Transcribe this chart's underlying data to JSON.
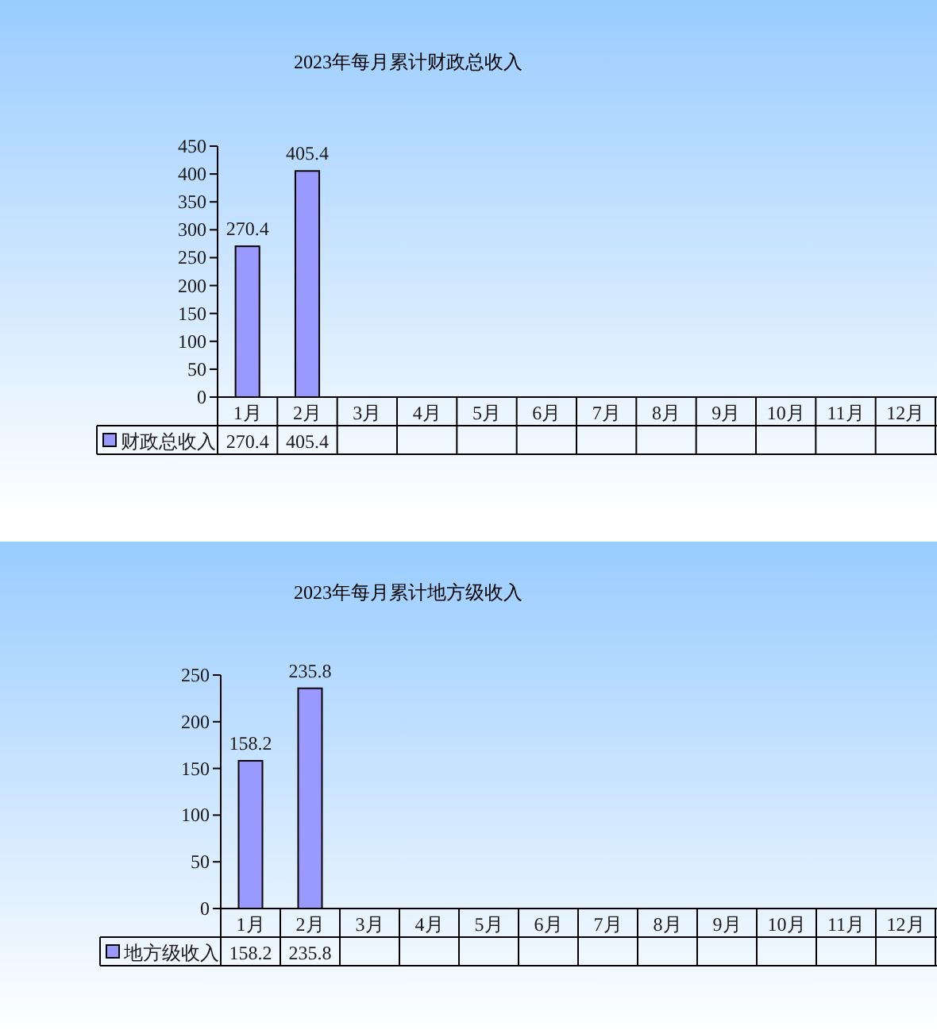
{
  "chart_data": [
    {
      "type": "bar",
      "title": "2023年每月累计财政总收入",
      "categories": [
        "1月",
        "2月",
        "3月",
        "4月",
        "5月",
        "6月",
        "7月",
        "8月",
        "9月",
        "10月",
        "11月",
        "12月"
      ],
      "series": [
        {
          "name": "财政总收入",
          "color": "#9999ff",
          "values": [
            270.4,
            405.4,
            null,
            null,
            null,
            null,
            null,
            null,
            null,
            null,
            null,
            null
          ]
        }
      ],
      "ylim": [
        0,
        450
      ],
      "yticks": [
        0,
        50,
        100,
        150,
        200,
        250,
        300,
        350,
        400,
        450
      ],
      "data_labels": true,
      "legend": "bottom",
      "annotations": [
        {
          "text": "270.4",
          "x": "1月",
          "y": 270.4
        },
        {
          "text": "405.4",
          "x": "2月",
          "y": 405.4
        }
      ]
    },
    {
      "type": "bar",
      "title": "2023年每月累计地方级收入",
      "categories": [
        "1月",
        "2月",
        "3月",
        "4月",
        "5月",
        "6月",
        "7月",
        "8月",
        "9月",
        "10月",
        "11月",
        "12月"
      ],
      "series": [
        {
          "name": "地方级收入",
          "color": "#9999ff",
          "values": [
            158.2,
            235.8,
            null,
            null,
            null,
            null,
            null,
            null,
            null,
            null,
            null,
            null
          ]
        }
      ],
      "ylim": [
        0,
        250
      ],
      "yticks": [
        0,
        50,
        100,
        150,
        200,
        250
      ],
      "data_labels": true,
      "legend": "bottom",
      "annotations": [
        {
          "text": "158.2",
          "x": "1月",
          "y": 158.2
        },
        {
          "text": "235.8",
          "x": "2月",
          "y": 235.8
        }
      ]
    }
  ]
}
